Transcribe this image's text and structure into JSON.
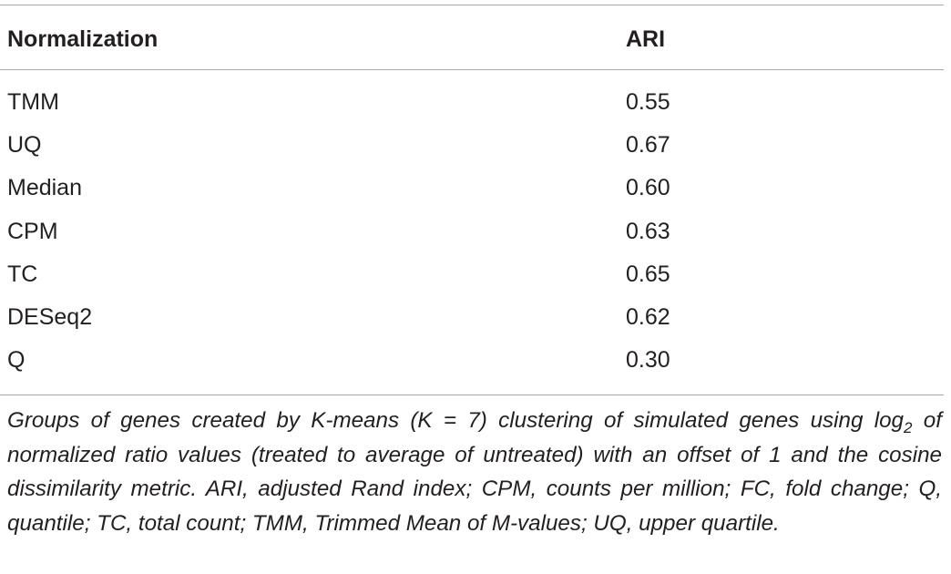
{
  "table": {
    "headers": [
      "Normalization",
      "ARI"
    ],
    "rows": [
      [
        "TMM",
        "0.55"
      ],
      [
        "UQ",
        "0.67"
      ],
      [
        "Median",
        "0.60"
      ],
      [
        "CPM",
        "0.63"
      ],
      [
        "TC",
        "0.65"
      ],
      [
        "DESeq2",
        "0.62"
      ],
      [
        "Q",
        "0.30"
      ]
    ]
  },
  "footnote": {
    "part1": "Groups of genes created by K-means (K = 7) clustering of simulated genes using log",
    "subscript": "2",
    "part2": " of normalized ratio values (treated to average of untreated) with an offset of 1 and the cosine dissimilarity metric. ARI, adjusted Rand index; CPM, counts per million; FC, fold change; Q, quantile; TC, total count; TMM, Trimmed Mean of M-values; UQ, upper quartile."
  }
}
